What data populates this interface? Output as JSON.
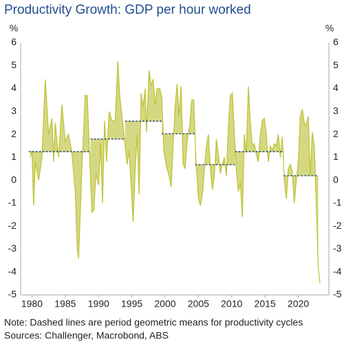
{
  "chart_data": {
    "type": "line",
    "title": "Productivity Growth: GDP per hour worked",
    "y_unit": "%",
    "y2_unit": "%",
    "notes": [
      "Note: Dashed lines are period geometric means for productivity cycles",
      "Sources: Challenger, Macrobond, ABS"
    ],
    "xlim": [
      1978.3,
      2024.6
    ],
    "xticks": [
      1980,
      1985,
      1990,
      1995,
      2000,
      2005,
      2010,
      2015,
      2020
    ],
    "ylim": [
      -5,
      6
    ],
    "yticks": [
      -5,
      -4,
      -3,
      -2,
      -1,
      0,
      1,
      2,
      3,
      4,
      5,
      6
    ],
    "y2lim": [
      -5,
      6
    ],
    "y2ticks": [
      -5,
      -4,
      -3,
      -2,
      -1,
      0,
      1,
      2,
      3,
      4,
      5,
      6
    ],
    "line_color": "#bfc43a",
    "fill_color": "#d5d883",
    "mean_color": "#1f3f5f",
    "series": [
      {
        "name": "GDP per hour worked",
        "x": [
          1979.75,
          1980.0,
          1980.25,
          1980.5,
          1981,
          1981.5,
          1982,
          1982.5,
          1983,
          1983.25,
          1983.5,
          1984,
          1984.5,
          1985,
          1985.5,
          1986,
          1986.5,
          1986.8,
          1987,
          1987.5,
          1988,
          1988.3,
          1988.6,
          1989,
          1989.3,
          1989.6,
          1990,
          1990.3,
          1990.6,
          1990.9,
          1991.2,
          1991.6,
          1992,
          1992.5,
          1992.9,
          1993.2,
          1993.6,
          1994,
          1994.3,
          1994.6,
          1995.2,
          1995.5,
          1995.8,
          1996.1,
          1996.4,
          1996.7,
          1997,
          1997.2,
          1997.6,
          1997.9,
          1998.2,
          1998.5,
          1998.8,
          1999.2,
          1999.5,
          1999.8,
          2000.2,
          2000.6,
          2000.9,
          2001.2,
          2001.5,
          2001.8,
          2002.1,
          2002.4,
          2002.7,
          2003,
          2003.3,
          2003.7,
          2004,
          2004.3,
          2004.6,
          2005,
          2005.3,
          2005.6,
          2005.9,
          2006.2,
          2006.5,
          2006.8,
          2007.1,
          2007.4,
          2007.7,
          2008,
          2008.3,
          2008.6,
          2008.9,
          2009.2,
          2009.5,
          2009.8,
          2010.1,
          2010.4,
          2010.7,
          2011,
          2011.3,
          2011.6,
          2011.9,
          2012.2,
          2012.5,
          2012.8,
          2013.1,
          2013.4,
          2013.7,
          2014,
          2014.3,
          2014.6,
          2014.9,
          2015.2,
          2015.5,
          2015.8,
          2016.1,
          2016.4,
          2016.7,
          2017,
          2017.3,
          2017.6,
          2017.9,
          2018.2,
          2018.5,
          2018.8,
          2019.1,
          2019.4,
          2019.7,
          2020,
          2020.3,
          2020.6,
          2020.9,
          2021.2,
          2021.5,
          2021.8,
          2022.1,
          2022.4,
          2022.7,
          2023,
          2023.25
        ],
        "values": [
          1.0,
          1.3,
          -1.1,
          0.8,
          0.0,
          1.0,
          4.4,
          2.0,
          2.7,
          0.8,
          2.5,
          1.0,
          3.3,
          1.7,
          2.0,
          1.2,
          -0.5,
          -3.0,
          -3.4,
          0.5,
          3.7,
          3.7,
          1.5,
          -1.4,
          -1.3,
          0.3,
          -0.2,
          1.6,
          -1.0,
          2.6,
          0.8,
          3.0,
          2.6,
          2.6,
          5.2,
          3.6,
          2.6,
          1.5,
          0.7,
          1.3,
          -1.8,
          0.5,
          2.0,
          -0.6,
          3.8,
          3.2,
          4.0,
          2.1,
          4.8,
          4.1,
          4.4,
          3.3,
          4.0,
          4.0,
          3.6,
          1.3,
          0.6,
          0.2,
          -0.3,
          1.5,
          3.2,
          4.2,
          2.8,
          4.1,
          0.7,
          0.5,
          1.7,
          2.4,
          3.5,
          3.5,
          1.0,
          -0.8,
          -1.1,
          -0.6,
          0.5,
          1.5,
          2.0,
          0.5,
          -0.4,
          0.2,
          1.8,
          1.1,
          0.3,
          0.7,
          1.0,
          0.2,
          2.3,
          3.7,
          3.8,
          2.0,
          0.4,
          -0.5,
          -0.1,
          -1.6,
          2.0,
          1.2,
          4.1,
          2.5,
          1.5,
          1.6,
          1.1,
          0.8,
          2.0,
          2.6,
          2.7,
          2.0,
          0.8,
          1.5,
          1.3,
          1.6,
          1.5,
          2.0,
          1.0,
          1.9,
          0.0,
          -0.8,
          0.5,
          0.7,
          0.4,
          -1.0,
          0.0,
          0.8,
          2.8,
          3.1,
          2.5,
          2.4,
          2.8,
          0.2,
          2.1,
          1.5,
          -1.0,
          -3.8,
          -4.5
        ]
      }
    ],
    "period_means": [
      {
        "start": 1979.5,
        "end": 1988.8,
        "mean": 1.25
      },
      {
        "start": 1988.8,
        "end": 1994.0,
        "mean": 1.8
      },
      {
        "start": 1994.0,
        "end": 1999.5,
        "mean": 2.58
      },
      {
        "start": 1999.5,
        "end": 2004.5,
        "mean": 2.03
      },
      {
        "start": 2004.5,
        "end": 2010.5,
        "mean": 0.68
      },
      {
        "start": 2010.5,
        "end": 2017.8,
        "mean": 1.25
      },
      {
        "start": 2017.8,
        "end": 2023.0,
        "mean": 0.2
      }
    ]
  }
}
